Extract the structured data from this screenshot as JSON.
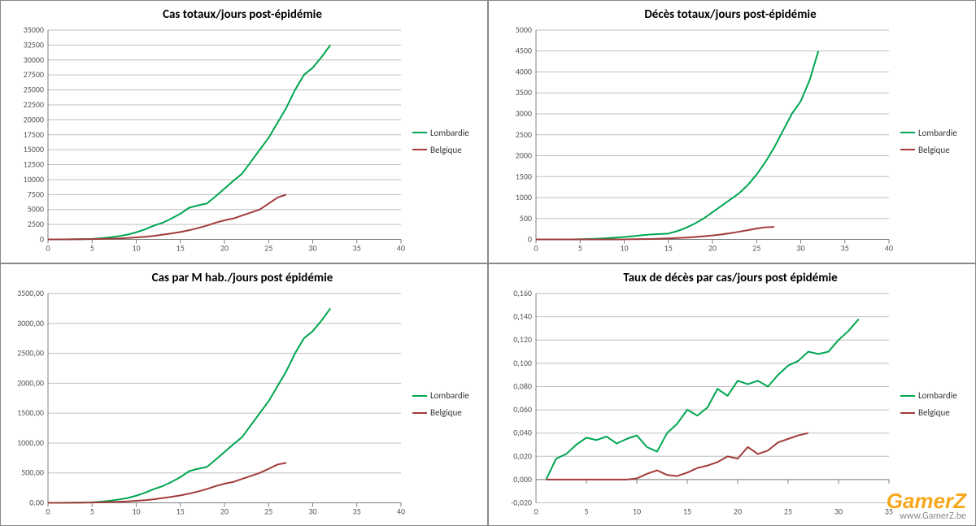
{
  "watermark": {
    "logo_text": "GamerZ",
    "url_text": "www.GamerZ.be"
  },
  "legend_labels": {
    "series1": "Lombardie",
    "series2": "Belgique"
  },
  "series_colors": {
    "lombardie": "#00a651",
    "belgique": "#a23b3b"
  },
  "style": {
    "title_fontsize": 15,
    "axis_fontsize": 10,
    "legend_fontsize": 11,
    "grid_color": "#bfbfbf",
    "axis_color": "#808080",
    "background": "#ffffff",
    "border_color": "#888888",
    "line_width": 2
  },
  "charts": [
    {
      "id": "chart-tl",
      "title": "Cas totaux/jours post-épidémie",
      "type": "line",
      "xlim": [
        0,
        40
      ],
      "xtick_step": 5,
      "ylim": [
        0,
        35000
      ],
      "ytick_step": 2500,
      "y_decimals": 0,
      "series": [
        {
          "name": "Lombardie",
          "color": "#00a651",
          "points": [
            [
              0,
              10
            ],
            [
              1,
              15
            ],
            [
              2,
              25
            ],
            [
              3,
              40
            ],
            [
              4,
              60
            ],
            [
              5,
              100
            ],
            [
              6,
              200
            ],
            [
              7,
              350
            ],
            [
              8,
              550
            ],
            [
              9,
              800
            ],
            [
              10,
              1200
            ],
            [
              11,
              1700
            ],
            [
              12,
              2300
            ],
            [
              13,
              2800
            ],
            [
              14,
              3500
            ],
            [
              15,
              4300
            ],
            [
              16,
              5300
            ],
            [
              17,
              5700
            ],
            [
              18,
              6000
            ],
            [
              19,
              7200
            ],
            [
              20,
              8500
            ],
            [
              21,
              9800
            ],
            [
              22,
              11000
            ],
            [
              23,
              13000
            ],
            [
              24,
              15000
            ],
            [
              25,
              17000
            ],
            [
              26,
              19500
            ],
            [
              27,
              22000
            ],
            [
              28,
              25000
            ],
            [
              29,
              27500
            ],
            [
              30,
              28700
            ],
            [
              31,
              30500
            ],
            [
              32,
              32500
            ]
          ]
        },
        {
          "name": "Belgique",
          "color": "#a23b3b",
          "points": [
            [
              0,
              5
            ],
            [
              1,
              10
            ],
            [
              2,
              15
            ],
            [
              3,
              25
            ],
            [
              4,
              40
            ],
            [
              5,
              60
            ],
            [
              6,
              90
            ],
            [
              7,
              130
            ],
            [
              8,
              180
            ],
            [
              9,
              250
            ],
            [
              10,
              350
            ],
            [
              11,
              450
            ],
            [
              12,
              600
            ],
            [
              13,
              800
            ],
            [
              14,
              1000
            ],
            [
              15,
              1250
            ],
            [
              16,
              1550
            ],
            [
              17,
              1900
            ],
            [
              18,
              2300
            ],
            [
              19,
              2800
            ],
            [
              20,
              3200
            ],
            [
              21,
              3500
            ],
            [
              22,
              4000
            ],
            [
              23,
              4500
            ],
            [
              24,
              5000
            ],
            [
              25,
              6000
            ],
            [
              26,
              7000
            ],
            [
              27,
              7500
            ]
          ]
        }
      ]
    },
    {
      "id": "chart-tr",
      "title": "Décès totaux/jours post-épidémie",
      "type": "line",
      "xlim": [
        0,
        40
      ],
      "xtick_step": 5,
      "ylim": [
        0,
        5000
      ],
      "ytick_step": 500,
      "y_decimals": 0,
      "series": [
        {
          "name": "Lombardie",
          "color": "#00a651",
          "points": [
            [
              0,
              0
            ],
            [
              1,
              0
            ],
            [
              2,
              0
            ],
            [
              3,
              1
            ],
            [
              4,
              2
            ],
            [
              5,
              5
            ],
            [
              6,
              10
            ],
            [
              7,
              18
            ],
            [
              8,
              30
            ],
            [
              9,
              45
            ],
            [
              10,
              60
            ],
            [
              11,
              80
            ],
            [
              12,
              100
            ],
            [
              13,
              120
            ],
            [
              14,
              130
            ],
            [
              15,
              140
            ],
            [
              16,
              200
            ],
            [
              17,
              280
            ],
            [
              18,
              380
            ],
            [
              19,
              500
            ],
            [
              20,
              650
            ],
            [
              21,
              800
            ],
            [
              22,
              950
            ],
            [
              23,
              1100
            ],
            [
              24,
              1300
            ],
            [
              25,
              1550
            ],
            [
              26,
              1850
            ],
            [
              27,
              2200
            ],
            [
              28,
              2600
            ],
            [
              29,
              3000
            ],
            [
              30,
              3300
            ],
            [
              31,
              3800
            ],
            [
              32,
              4500
            ]
          ]
        },
        {
          "name": "Belgique",
          "color": "#a23b3b",
          "points": [
            [
              0,
              0
            ],
            [
              1,
              0
            ],
            [
              2,
              0
            ],
            [
              3,
              0
            ],
            [
              4,
              0
            ],
            [
              5,
              0
            ],
            [
              6,
              0
            ],
            [
              7,
              0
            ],
            [
              8,
              0
            ],
            [
              9,
              0
            ],
            [
              10,
              2
            ],
            [
              11,
              5
            ],
            [
              12,
              8
            ],
            [
              13,
              12
            ],
            [
              14,
              18
            ],
            [
              15,
              25
            ],
            [
              16,
              35
            ],
            [
              17,
              45
            ],
            [
              18,
              60
            ],
            [
              19,
              75
            ],
            [
              20,
              95
            ],
            [
              21,
              120
            ],
            [
              22,
              150
            ],
            [
              23,
              185
            ],
            [
              24,
              220
            ],
            [
              25,
              260
            ],
            [
              26,
              290
            ],
            [
              27,
              300
            ]
          ]
        }
      ]
    },
    {
      "id": "chart-bl",
      "title": "Cas par M hab./jours post épidémie",
      "type": "line",
      "xlim": [
        0,
        40
      ],
      "xtick_step": 5,
      "ylim": [
        0,
        3500
      ],
      "ytick_step": 500,
      "y_decimals": 2,
      "series": [
        {
          "name": "Lombardie",
          "color": "#00a651",
          "points": [
            [
              0,
              1
            ],
            [
              1,
              1.5
            ],
            [
              2,
              2.5
            ],
            [
              3,
              4
            ],
            [
              4,
              6
            ],
            [
              5,
              10
            ],
            [
              6,
              20
            ],
            [
              7,
              35
            ],
            [
              8,
              55
            ],
            [
              9,
              80
            ],
            [
              10,
              120
            ],
            [
              11,
              170
            ],
            [
              12,
              230
            ],
            [
              13,
              280
            ],
            [
              14,
              350
            ],
            [
              15,
              430
            ],
            [
              16,
              530
            ],
            [
              17,
              570
            ],
            [
              18,
              600
            ],
            [
              19,
              720
            ],
            [
              20,
              850
            ],
            [
              21,
              980
            ],
            [
              22,
              1100
            ],
            [
              23,
              1300
            ],
            [
              24,
              1500
            ],
            [
              25,
              1700
            ],
            [
              26,
              1950
            ],
            [
              27,
              2200
            ],
            [
              28,
              2500
            ],
            [
              29,
              2750
            ],
            [
              30,
              2870
            ],
            [
              31,
              3050
            ],
            [
              32,
              3250
            ]
          ]
        },
        {
          "name": "Belgique",
          "color": "#a23b3b",
          "points": [
            [
              0,
              0.5
            ],
            [
              1,
              1
            ],
            [
              2,
              1.5
            ],
            [
              3,
              2.5
            ],
            [
              4,
              4
            ],
            [
              5,
              6
            ],
            [
              6,
              9
            ],
            [
              7,
              13
            ],
            [
              8,
              18
            ],
            [
              9,
              25
            ],
            [
              10,
              35
            ],
            [
              11,
              45
            ],
            [
              12,
              60
            ],
            [
              13,
              80
            ],
            [
              14,
              100
            ],
            [
              15,
              125
            ],
            [
              16,
              155
            ],
            [
              17,
              190
            ],
            [
              18,
              230
            ],
            [
              19,
              280
            ],
            [
              20,
              320
            ],
            [
              21,
              350
            ],
            [
              22,
              400
            ],
            [
              23,
              450
            ],
            [
              24,
              500
            ],
            [
              25,
              570
            ],
            [
              26,
              640
            ],
            [
              27,
              670
            ]
          ]
        }
      ]
    },
    {
      "id": "chart-br",
      "title": "Taux de décès par cas/jours post épidémie",
      "type": "line",
      "xlim": [
        0,
        35
      ],
      "xtick_step": 5,
      "ylim": [
        -0.02,
        0.16
      ],
      "ytick_step": 0.02,
      "y_decimals": 3,
      "series": [
        {
          "name": "Lombardie",
          "color": "#00a651",
          "points": [
            [
              1,
              0.0
            ],
            [
              2,
              0.018
            ],
            [
              3,
              0.022
            ],
            [
              4,
              0.03
            ],
            [
              5,
              0.036
            ],
            [
              6,
              0.034
            ],
            [
              7,
              0.037
            ],
            [
              8,
              0.031
            ],
            [
              9,
              0.035
            ],
            [
              10,
              0.038
            ],
            [
              11,
              0.028
            ],
            [
              12,
              0.024
            ],
            [
              13,
              0.04
            ],
            [
              14,
              0.048
            ],
            [
              15,
              0.06
            ],
            [
              16,
              0.055
            ],
            [
              17,
              0.062
            ],
            [
              18,
              0.078
            ],
            [
              19,
              0.072
            ],
            [
              20,
              0.085
            ],
            [
              21,
              0.082
            ],
            [
              22,
              0.085
            ],
            [
              23,
              0.08
            ],
            [
              24,
              0.09
            ],
            [
              25,
              0.098
            ],
            [
              26,
              0.102
            ],
            [
              27,
              0.11
            ],
            [
              28,
              0.108
            ],
            [
              29,
              0.11
            ],
            [
              30,
              0.12
            ],
            [
              31,
              0.128
            ],
            [
              32,
              0.138
            ]
          ]
        },
        {
          "name": "Belgique",
          "color": "#a23b3b",
          "points": [
            [
              1,
              0.0
            ],
            [
              2,
              0.0
            ],
            [
              3,
              0.0
            ],
            [
              4,
              0.0
            ],
            [
              5,
              0.0
            ],
            [
              6,
              0.0
            ],
            [
              7,
              0.0
            ],
            [
              8,
              0.0
            ],
            [
              9,
              0.0
            ],
            [
              10,
              0.001
            ],
            [
              11,
              0.005
            ],
            [
              12,
              0.008
            ],
            [
              13,
              0.004
            ],
            [
              14,
              0.003
            ],
            [
              15,
              0.006
            ],
            [
              16,
              0.01
            ],
            [
              17,
              0.012
            ],
            [
              18,
              0.015
            ],
            [
              19,
              0.02
            ],
            [
              20,
              0.018
            ],
            [
              21,
              0.028
            ],
            [
              22,
              0.022
            ],
            [
              23,
              0.025
            ],
            [
              24,
              0.032
            ],
            [
              25,
              0.035
            ],
            [
              26,
              0.038
            ],
            [
              27,
              0.04
            ]
          ]
        }
      ]
    }
  ]
}
